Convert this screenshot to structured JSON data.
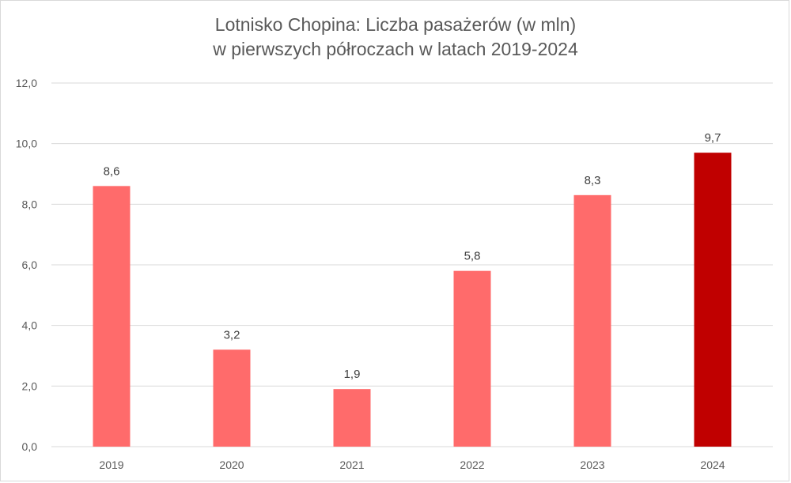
{
  "chart_data": {
    "type": "bar",
    "title_line1": "Lotnisko Chopina: Liczba pasażerów (w mln)",
    "title_line2": "w pierwszych półroczach w latach 2019-2024",
    "categories": [
      "2019",
      "2020",
      "2021",
      "2022",
      "2023",
      "2024"
    ],
    "values": [
      8.6,
      3.2,
      1.9,
      5.8,
      8.3,
      9.7
    ],
    "data_labels": [
      "8,6",
      "3,2",
      "1,9",
      "5,8",
      "8,3",
      "9,7"
    ],
    "ylim": [
      0,
      12
    ],
    "yticks": [
      "0,0",
      "2,0",
      "4,0",
      "6,0",
      "8,0",
      "10,0",
      "12,0"
    ],
    "grid": true,
    "legend": "none",
    "colors": {
      "bar": "#ff6b6b",
      "highlight_bar": "#c00000",
      "highlight_category": "2024",
      "grid": "#d9d9d9",
      "text": "#595959"
    }
  }
}
